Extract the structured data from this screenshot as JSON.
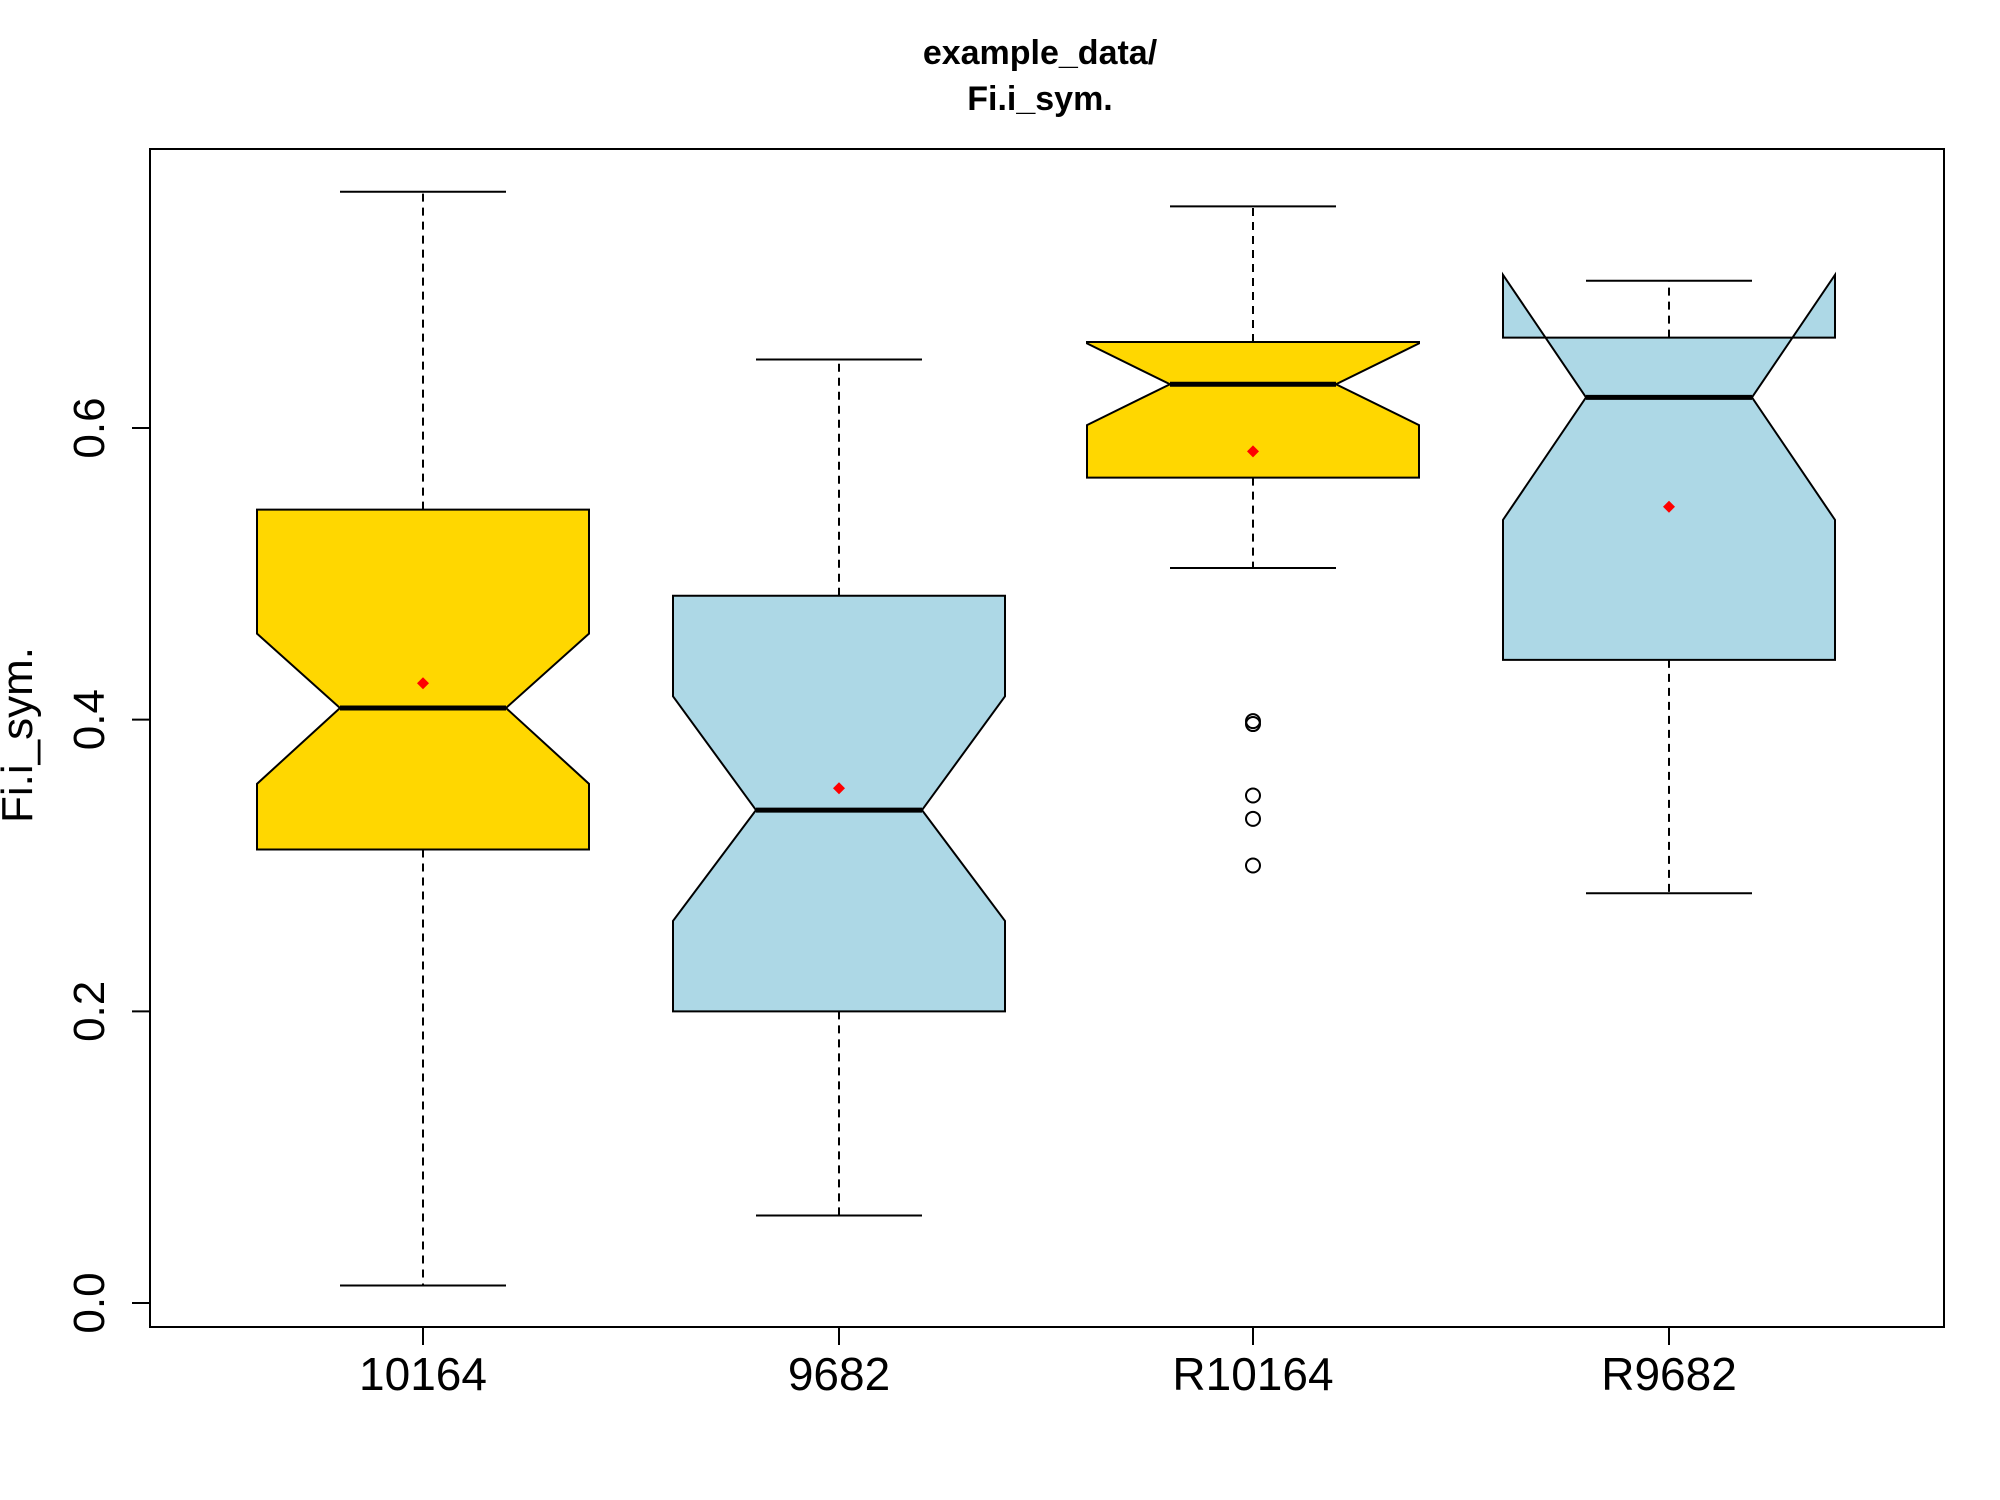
{
  "chart_data": {
    "type": "boxplot",
    "title": [
      "example_data/",
      "Fi.i_sym."
    ],
    "xlabel": "",
    "ylabel": "Fi.i_sym.",
    "ylim": [
      -0.02,
      0.79
    ],
    "y_ticks": [
      0.0,
      0.2,
      0.4,
      0.6
    ],
    "y_tick_labels": [
      "0.0",
      "0.2",
      "0.4",
      "0.6"
    ],
    "notched": true,
    "mean_marker_color": "#ff0000",
    "categories": [
      "10164",
      "9682",
      "R10164",
      "R9682"
    ],
    "boxes": [
      {
        "name": "10164",
        "color": "#ffd700",
        "whisker_low": 0.012,
        "q1": 0.311,
        "median": 0.408,
        "q3": 0.544,
        "whisker_high": 0.762,
        "notch_low": 0.356,
        "notch_high": 0.459,
        "mean": 0.425,
        "outliers": []
      },
      {
        "name": "9682",
        "color": "#add8e6",
        "whisker_low": 0.06,
        "q1": 0.2,
        "median": 0.338,
        "q3": 0.485,
        "whisker_high": 0.647,
        "notch_low": 0.262,
        "notch_high": 0.416,
        "mean": 0.353,
        "outliers": []
      },
      {
        "name": "R10164",
        "color": "#ffd700",
        "whisker_low": 0.504,
        "q1": 0.566,
        "median": 0.63,
        "q3": 0.659,
        "whisker_high": 0.752,
        "notch_low": 0.602,
        "notch_high": 0.658,
        "mean": 0.584,
        "outliers": [
          0.397,
          0.399,
          0.348,
          0.332,
          0.3
        ]
      },
      {
        "name": "R9682",
        "color": "#add8e6",
        "whisker_low": 0.281,
        "q1": 0.441,
        "median": 0.621,
        "q3": 0.662,
        "whisker_high": 0.701,
        "notch_low": 0.537,
        "notch_high": 0.705,
        "mean": 0.546,
        "outliers": []
      }
    ]
  }
}
